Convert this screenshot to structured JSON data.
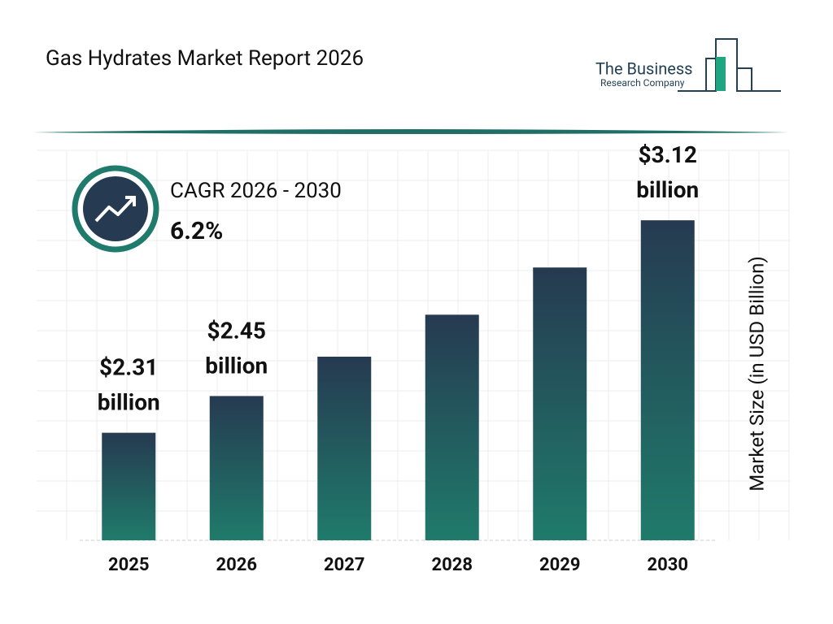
{
  "chart_data": {
    "type": "bar",
    "title": "Gas Hydrates Market Report 2026",
    "brand": [
      "The Business",
      "Research Company"
    ],
    "cagr_label": "CAGR 2026 - 2030",
    "cagr_value": "6.2%",
    "y_label": "Market Size (in USD Billion)",
    "categories": [
      "2025",
      "2026",
      "2027",
      "2028",
      "2029",
      "2030"
    ],
    "values": [
      2.31,
      2.45,
      2.6,
      2.76,
      2.94,
      3.12
    ],
    "value_labels": [
      "$2.31 billion",
      "$2.45 billion",
      null,
      null,
      null,
      "$3.12 billion"
    ],
    "gradient": [
      "#263a51",
      "#1f7b6b"
    ],
    "ylim": [
      1.9,
      3.3
    ]
  }
}
